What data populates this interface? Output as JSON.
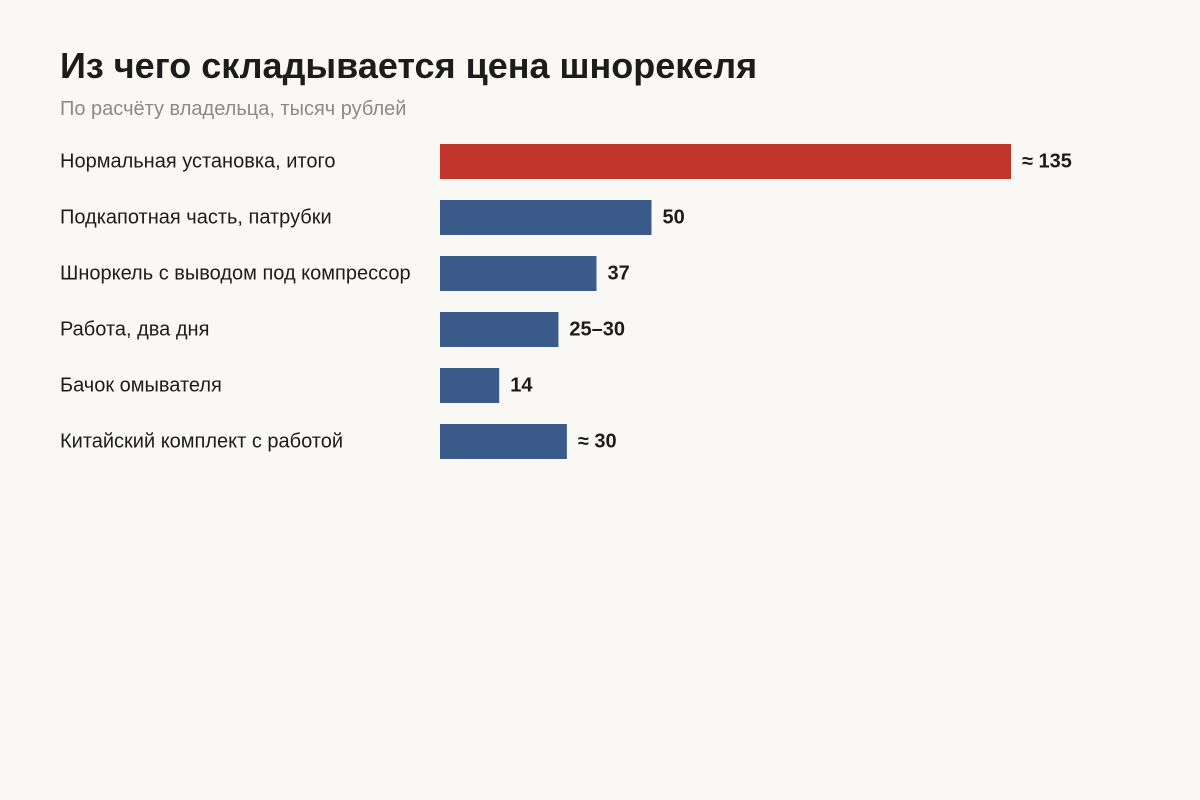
{
  "chart_data": {
    "type": "bar",
    "orientation": "horizontal",
    "title": "Из чего складывается цена шнорекеля",
    "subtitle": "По расчёту владельца, тысяч рублей",
    "categories": [
      "Нормальная установка, итого",
      "Подкапотная часть, патрубки",
      "Шноркель с выводом под компрессор",
      "Работа, два дня",
      "Бачок омывателя",
      "Китайский комплект с работой"
    ],
    "values": [
      135,
      50,
      37,
      28,
      14,
      30
    ],
    "value_labels": [
      "≈ 135",
      "50",
      "37",
      "25–30",
      "14",
      "≈ 30"
    ],
    "highlight_index": 0,
    "colors": {
      "highlight": "#c0362c",
      "bar": "#3a5a8a"
    },
    "xlim": [
      0,
      135
    ],
    "grid": false,
    "legend": "none"
  }
}
